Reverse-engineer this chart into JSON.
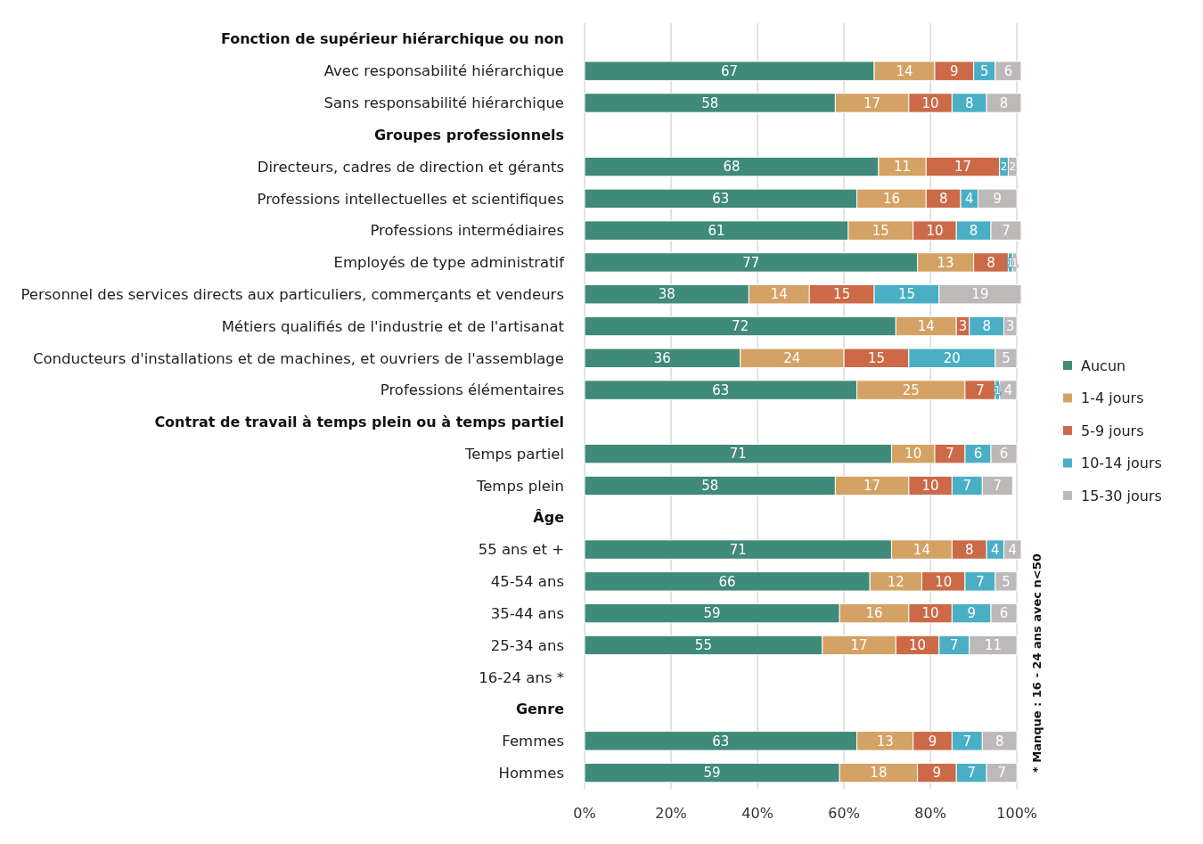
{
  "chart_data": {
    "type": "bar",
    "orientation": "horizontal",
    "stacked": true,
    "data_labels": true,
    "grid": "x",
    "legend": "right",
    "categories": [
      null,
      "Avec responsabilité hiérarchique",
      "Sans responsabilité hiérarchique",
      null,
      "Directeurs, cadres de direction et gérants",
      "Professions intellectuelles et scientifiques",
      "Professions intermédiaires",
      "Employés de type administratif",
      "Personnel des services directs aux particuliers, commerçants et vendeurs",
      "Métiers qualifiés de l'industrie et de l'artisanat",
      "Conducteurs d'installations et de machines, et ouvriers de l'assemblage",
      "Professions élémentaires",
      null,
      "Temps partiel",
      "Temps plein",
      null,
      "55 ans et +",
      "45-54 ans",
      "35-44 ans",
      "25-34 ans",
      "16-24 ans *",
      null,
      "Femmes",
      "Hommes"
    ],
    "series": [
      {
        "name": "Aucun",
        "color": "#3f8a7a",
        "values": [
          null,
          67,
          58,
          null,
          68,
          63,
          61,
          77,
          38,
          72,
          36,
          63,
          null,
          71,
          58,
          null,
          71,
          66,
          59,
          55,
          null,
          null,
          63,
          59
        ]
      },
      {
        "name": "1-4 jours",
        "color": "#d4a264",
        "values": [
          null,
          14,
          17,
          null,
          11,
          16,
          15,
          13,
          14,
          14,
          24,
          25,
          null,
          10,
          17,
          null,
          14,
          12,
          16,
          17,
          null,
          null,
          13,
          18
        ]
      },
      {
        "name": "5-9 jours",
        "color": "#cc6a48",
        "values": [
          null,
          9,
          10,
          null,
          17,
          8,
          10,
          8,
          15,
          3,
          15,
          7,
          null,
          7,
          10,
          null,
          8,
          10,
          10,
          10,
          null,
          null,
          9,
          9
        ]
      },
      {
        "name": "10-14 jours",
        "color": "#4aafc5",
        "values": [
          null,
          5,
          8,
          null,
          2,
          4,
          8,
          1,
          15,
          8,
          20,
          1,
          null,
          6,
          7,
          null,
          4,
          7,
          9,
          7,
          null,
          null,
          7,
          7
        ]
      },
      {
        "name": "15-30 jours",
        "color": "#bdb9b8",
        "values": [
          null,
          6,
          8,
          null,
          2,
          9,
          7,
          1,
          19,
          3,
          5,
          4,
          null,
          6,
          7,
          null,
          4,
          5,
          6,
          11,
          null,
          null,
          8,
          7
        ]
      }
    ],
    "xlim": [
      0,
      101
    ],
    "xticks": [
      {
        "value": 0,
        "label": "0%"
      },
      {
        "value": 20,
        "label": "20%"
      },
      {
        "value": 40,
        "label": "40%"
      },
      {
        "value": 60,
        "label": "60%"
      },
      {
        "value": 80,
        "label": "80%"
      },
      {
        "value": 100,
        "label": "100%"
      }
    ],
    "annotations": [
      "Fonction de supérieur hiérarchique ou non",
      "Groupes professionnels",
      "Contrat de travail à temps plein ou à temps partiel",
      "Âge",
      "Genre",
      "* Manque : 16 - 24 ans avec n<50"
    ]
  }
}
